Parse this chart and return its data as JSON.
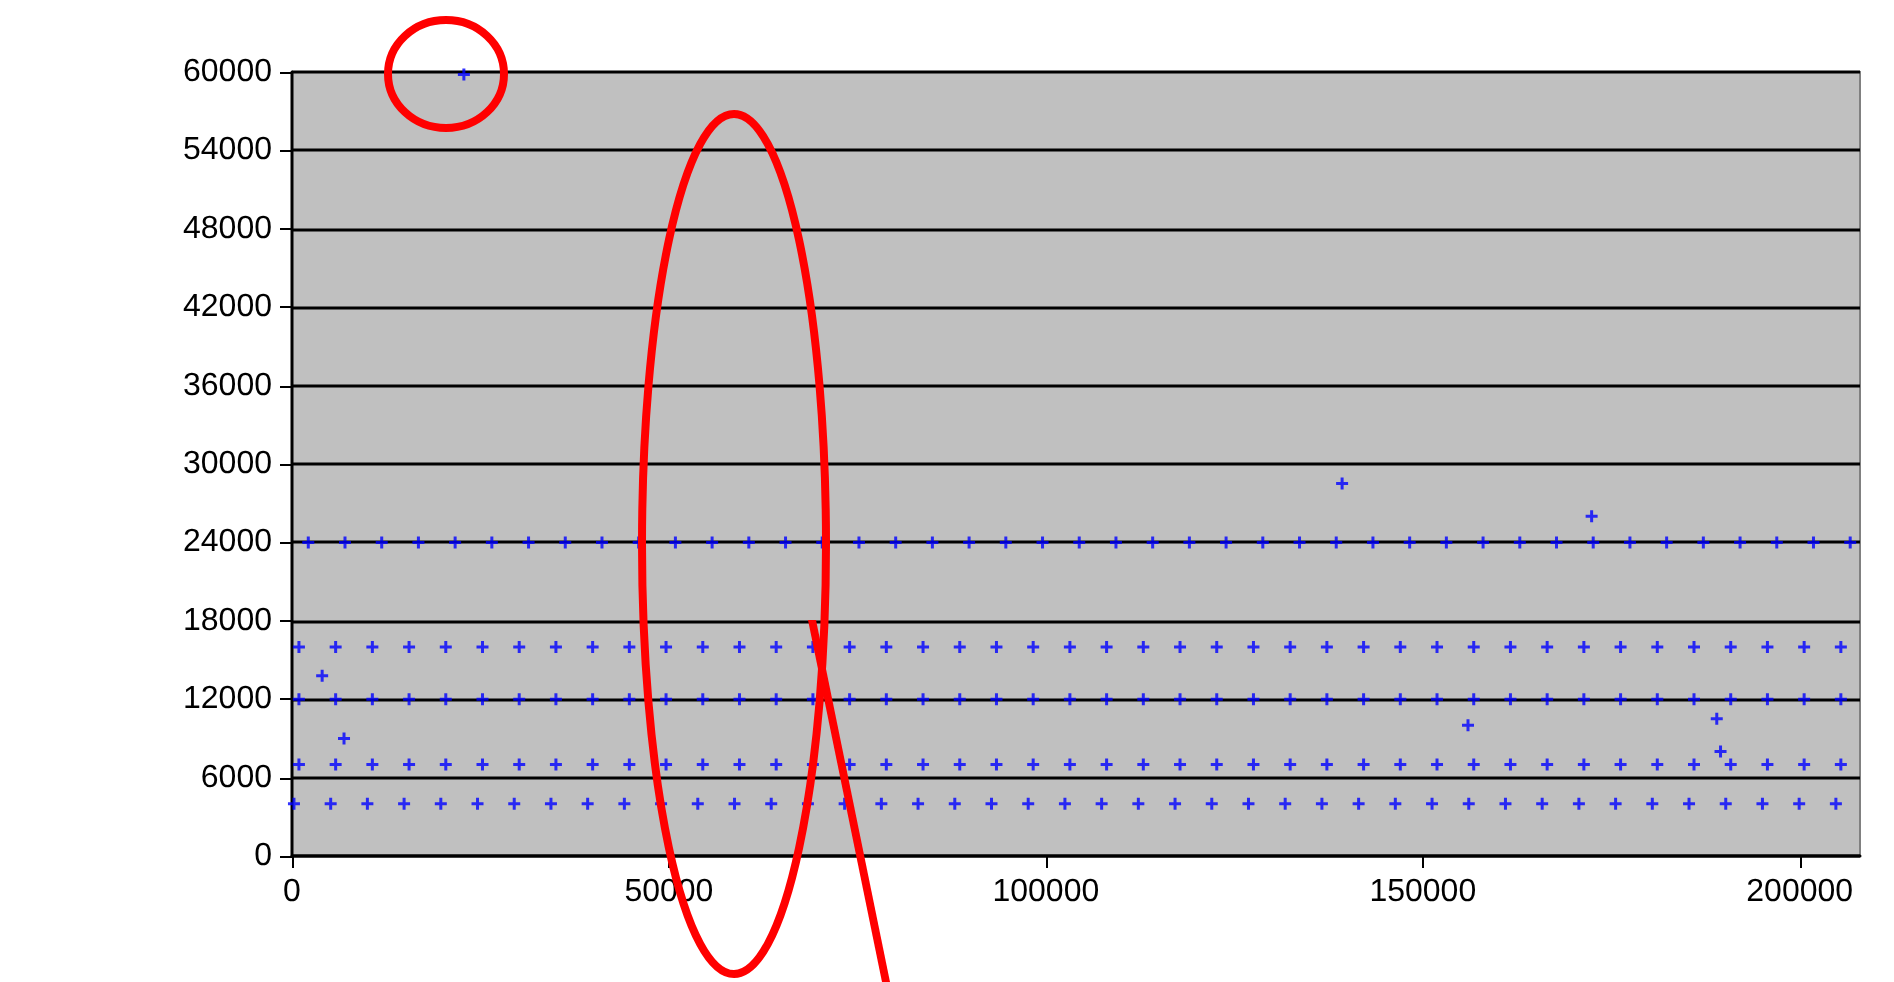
{
  "chart_data": {
    "type": "scatter",
    "marker": "cross",
    "grid": "y",
    "xlim": [
      0,
      208000
    ],
    "xticks": [
      0,
      50000,
      100000,
      150000,
      200000
    ],
    "ylim": [
      0,
      60000
    ],
    "yticks": [
      0,
      6000,
      12000,
      18000,
      24000,
      30000,
      36000,
      42000,
      48000,
      54000,
      60000
    ],
    "series": [
      {
        "color": "#0000ff",
        "x": [
          260,
          920,
          920,
          920,
          2160,
          5130,
          5790,
          5790,
          5790,
          7030,
          10000,
          10660,
          10660,
          10660,
          11900,
          14870,
          15530,
          15530,
          15530,
          16770,
          19740,
          20400,
          20400,
          20400,
          21640,
          24610,
          25270,
          25270,
          25270,
          26510,
          29480,
          30140,
          30140,
          30140,
          31380,
          34350,
          35010,
          35010,
          35010,
          36250,
          39220,
          39880,
          39880,
          39880,
          41120,
          44090,
          44750,
          44750,
          44750,
          45990,
          48960,
          49620,
          49620,
          49620,
          50860,
          53830,
          54490,
          54490,
          54490,
          55730,
          58700,
          59360,
          59360,
          59360,
          60600,
          63570,
          64230,
          64230,
          64230,
          65470,
          68440,
          69100,
          69100,
          69100,
          70340,
          73310,
          73970,
          73970,
          73970,
          75210,
          78180,
          78840,
          78840,
          78840,
          80080,
          83050,
          83710,
          83710,
          83710,
          84950,
          87920,
          88580,
          88580,
          88580,
          89820,
          92790,
          93450,
          93450,
          93450,
          94690,
          97660,
          98320,
          98320,
          98320,
          99560,
          102530,
          103190,
          103190,
          103190,
          104430,
          107400,
          108060,
          108060,
          108060,
          109300,
          112270,
          112930,
          112930,
          112930,
          114170,
          117140,
          117800,
          117800,
          117800,
          119040,
          122010,
          122670,
          122670,
          122670,
          123910,
          126880,
          127540,
          127540,
          127540,
          128780,
          131750,
          132410,
          132410,
          132410,
          133650,
          136620,
          137280,
          137280,
          137280,
          138520,
          141490,
          142150,
          142150,
          142150,
          143390,
          146360,
          147020,
          147020,
          147020,
          148260,
          151230,
          151890,
          151890,
          151890,
          153130,
          156100,
          156760,
          156760,
          156760,
          158000,
          160970,
          161630,
          161630,
          161630,
          162870,
          165840,
          166500,
          166500,
          166500,
          167740,
          170710,
          171370,
          171370,
          171370,
          172610,
          175580,
          176240,
          176240,
          176240,
          177480,
          180450,
          181110,
          181110,
          181110,
          182350,
          185320,
          185980,
          185980,
          185980,
          187220,
          190190,
          190850,
          190850,
          190850,
          192090,
          195060,
          195720,
          195720,
          195720,
          196960,
          199930,
          200590,
          200590,
          200590,
          201830,
          204800,
          205460,
          205460,
          205460,
          206700,
          22800,
          139300,
          172400,
          156000,
          189000,
          4000,
          6900,
          189500
        ],
        "values": [
          4000,
          7000,
          12000,
          16000,
          24000,
          4000,
          7000,
          12000,
          16000,
          24000,
          4000,
          7000,
          12000,
          16000,
          24000,
          4000,
          7000,
          12000,
          16000,
          24000,
          4000,
          7000,
          12000,
          16000,
          24000,
          4000,
          7000,
          12000,
          16000,
          24000,
          4000,
          7000,
          12000,
          16000,
          24000,
          4000,
          7000,
          12000,
          16000,
          24000,
          4000,
          7000,
          12000,
          16000,
          24000,
          4000,
          7000,
          12000,
          16000,
          24000,
          4000,
          7000,
          12000,
          16000,
          24000,
          4000,
          7000,
          12000,
          16000,
          24000,
          4000,
          7000,
          12000,
          16000,
          24000,
          4000,
          7000,
          12000,
          16000,
          24000,
          4000,
          7000,
          12000,
          16000,
          24000,
          4000,
          7000,
          12000,
          16000,
          24000,
          4000,
          7000,
          12000,
          16000,
          24000,
          4000,
          7000,
          12000,
          16000,
          24000,
          4000,
          7000,
          12000,
          16000,
          24000,
          4000,
          7000,
          12000,
          16000,
          24000,
          4000,
          7000,
          12000,
          16000,
          24000,
          4000,
          7000,
          12000,
          16000,
          24000,
          4000,
          7000,
          12000,
          16000,
          24000,
          4000,
          7000,
          12000,
          16000,
          24000,
          4000,
          7000,
          12000,
          16000,
          24000,
          4000,
          7000,
          12000,
          16000,
          24000,
          4000,
          7000,
          12000,
          16000,
          24000,
          4000,
          7000,
          12000,
          16000,
          24000,
          4000,
          7000,
          12000,
          16000,
          24000,
          4000,
          7000,
          12000,
          16000,
          24000,
          4000,
          7000,
          12000,
          16000,
          24000,
          4000,
          7000,
          12000,
          16000,
          24000,
          4000,
          7000,
          12000,
          16000,
          24000,
          4000,
          7000,
          12000,
          16000,
          24000,
          4000,
          7000,
          12000,
          16000,
          24000,
          4000,
          7000,
          12000,
          16000,
          24000,
          4000,
          7000,
          12000,
          16000,
          24000,
          4000,
          7000,
          12000,
          16000,
          24000,
          4000,
          7000,
          12000,
          16000,
          24000,
          4000,
          7000,
          12000,
          16000,
          24000,
          4000,
          7000,
          12000,
          16000,
          24000,
          4000,
          7000,
          12000,
          16000,
          24000,
          4000,
          7000,
          12000,
          16000,
          24000,
          59800,
          28500,
          26000,
          10000,
          10500,
          13800,
          9000,
          8000
        ]
      }
    ]
  }
}
